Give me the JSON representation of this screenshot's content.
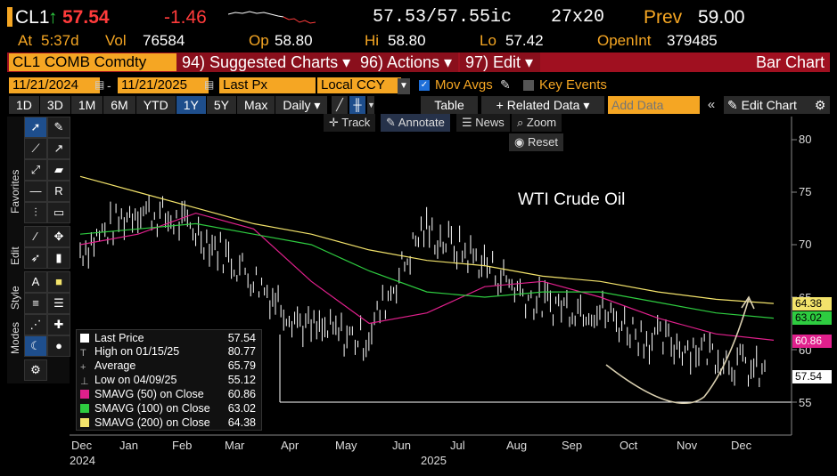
{
  "ticker": {
    "symbol": "CL1",
    "arrow": "↑",
    "last": "57.54",
    "change": "-1.46",
    "bid_ask": "57.53/57.55ic",
    "size": "27x20",
    "prev_label": "Prev",
    "prev_value": "59.00"
  },
  "stats": {
    "at_label": "At",
    "time": "5:37d",
    "vol_label": "Vol",
    "vol": "76584",
    "op_label": "Op",
    "op": "58.80",
    "hi_label": "Hi",
    "hi": "58.80",
    "lo_label": "Lo",
    "lo": "57.42",
    "oi_label": "OpenInt",
    "oi": "379485"
  },
  "menu": {
    "security": "CL1 COMB Comdty",
    "suggested": "94) Suggested Charts ▾",
    "actions": "96) Actions ▾",
    "edit": "97) Edit ▾",
    "chart_type": "Bar Chart"
  },
  "dates": {
    "start": "11/21/2024",
    "end": "11/21/2025",
    "field": "Last Px",
    "currency": "Local CCY",
    "mov_avgs": "Mov Avgs",
    "key_events": "Key Events"
  },
  "periods": [
    "1D",
    "3D",
    "1M",
    "6M",
    "YTD",
    "1Y",
    "5Y",
    "Max"
  ],
  "active_period": "1Y",
  "interval": "Daily ▾",
  "table_btn": "Table",
  "related": "+ Related Data ▾",
  "add_data_placeholder": "Add Data",
  "edit_chart": "Edit Chart",
  "chart_tools": {
    "track": "Track",
    "annotate": "Annotate",
    "news": "News",
    "zoom": "Zoom",
    "reset": "Reset"
  },
  "side_labels": {
    "favorites": "Favorites",
    "edit": "Edit",
    "style": "Style",
    "modes": "Modes"
  },
  "annotation_text": "WTI Crude Oil",
  "legend": [
    {
      "label": "Last Price",
      "value": "57.54",
      "color": "#ffffff"
    },
    {
      "label": "High on 01/15/25",
      "value": "80.77",
      "color": ""
    },
    {
      "label": "Average",
      "value": "65.79",
      "color": ""
    },
    {
      "label": "Low on 04/09/25",
      "value": "55.12",
      "color": ""
    },
    {
      "label": "SMAVG (50)  on Close",
      "value": "60.86",
      "color": "#e0208c"
    },
    {
      "label": "SMAVG (100)  on Close",
      "value": "63.02",
      "color": "#2ecc40"
    },
    {
      "label": "SMAVG (200)  on Close",
      "value": "64.38",
      "color": "#f3e36b"
    }
  ],
  "y_ticks": [
    "80",
    "75",
    "70",
    "65",
    "60",
    "55"
  ],
  "x_ticks": [
    "Dec",
    "Jan",
    "Feb",
    "Mar",
    "Apr",
    "May",
    "Jun",
    "Jul",
    "Aug",
    "Sep",
    "Oct",
    "Nov",
    "Dec"
  ],
  "x_years": [
    "2024",
    "2025"
  ],
  "price_tags": [
    {
      "value": "64.38",
      "color": "#f3e36b"
    },
    {
      "value": "63.02",
      "color": "#2ecc40"
    },
    {
      "value": "60.86",
      "color": "#e0208c"
    },
    {
      "value": "57.54",
      "color": "#ffffff"
    }
  ],
  "chart_data": {
    "type": "line",
    "title": "",
    "ylim": [
      51,
      82
    ],
    "x": [
      "Dec",
      "Jan",
      "Feb",
      "Mar",
      "Apr",
      "May",
      "Jun",
      "Jul",
      "Aug",
      "Sep",
      "Oct",
      "Nov",
      "Dec"
    ],
    "series": [
      {
        "name": "Last Price",
        "values": [
          69.5,
          73.5,
          71.5,
          67.0,
          62.0,
          61.0,
          71.5,
          68.5,
          64.5,
          64.0,
          61.0,
          60.0,
          57.5
        ]
      },
      {
        "name": "SMAVG (50)",
        "values": [
          70.0,
          71.0,
          73.0,
          71.5,
          66.5,
          62.5,
          63.5,
          66.0,
          66.5,
          65.0,
          63.0,
          61.5,
          60.9
        ]
      },
      {
        "name": "SMAVG (100)",
        "values": [
          71.0,
          71.5,
          72.0,
          71.0,
          70.0,
          67.5,
          65.5,
          65.0,
          65.5,
          65.5,
          64.5,
          63.5,
          63.0
        ]
      },
      {
        "name": "SMAVG (200)",
        "values": [
          76.5,
          75.0,
          73.5,
          72.0,
          71.0,
          69.5,
          68.5,
          68.0,
          67.0,
          66.5,
          65.5,
          64.8,
          64.4
        ]
      }
    ]
  }
}
